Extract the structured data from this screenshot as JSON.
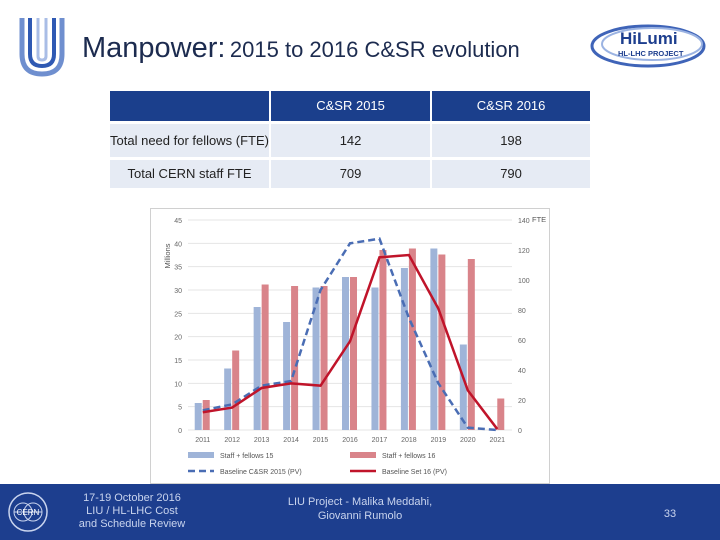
{
  "header": {
    "title_main": "Manpower:",
    "title_sub": "2015 to 2016 C&SR evolution",
    "logo_hilumi_text": "HiLumi",
    "logo_hilumi_subtext": "HL-LHC PROJECT"
  },
  "table": {
    "columns": [
      "",
      "C&SR 2015",
      "C&SR 2016"
    ],
    "rows": [
      {
        "label": "Total need for fellows (FTE)",
        "v2015": "142",
        "v2016": "198"
      },
      {
        "label": "Total CERN staff FTE",
        "v2015": "709",
        "v2016": "790"
      }
    ]
  },
  "chart_data": {
    "type": "bar",
    "categories": [
      "2011",
      "2012",
      "2013",
      "2014",
      "2015",
      "2016",
      "2017",
      "2018",
      "2019",
      "2020",
      "2021"
    ],
    "left_axis_label": "Millions",
    "left_ylim": [
      0,
      45
    ],
    "left_ticks": [
      "0",
      "5",
      "10",
      "15",
      "20",
      "25",
      "30",
      "35",
      "40",
      "45"
    ],
    "right_axis_label": "FTE",
    "right_ylim": [
      0,
      140
    ],
    "right_ticks": [
      "0",
      "20",
      "40",
      "60",
      "80",
      "100",
      "120",
      "140"
    ],
    "series": [
      {
        "name": "Staff + fellows 15",
        "kind": "bar",
        "axis": "right",
        "color": "#9fb4d8",
        "values": [
          18,
          41,
          82,
          72,
          95,
          102,
          95,
          108,
          121,
          57,
          0
        ]
      },
      {
        "name": "Staff + fellows 16",
        "kind": "bar",
        "axis": "right",
        "color": "#d9848a",
        "values": [
          20,
          53,
          97,
          96,
          96,
          102,
          120,
          121,
          117,
          114,
          21
        ]
      },
      {
        "name": "Baseline C&SR 2015 (PV)",
        "kind": "line",
        "axis": "left",
        "color": "#4a6db4",
        "dash": "7,4",
        "values": [
          4.2,
          5.5,
          9.5,
          10.5,
          30,
          40,
          41,
          24,
          10,
          0.5,
          0
        ]
      },
      {
        "name": "Baseline Set 16 (PV)",
        "kind": "line",
        "axis": "left",
        "color": "#c0142a",
        "values": [
          3.8,
          4.8,
          9,
          10,
          9.5,
          19,
          37,
          37.5,
          26,
          8.5,
          0.2
        ]
      }
    ],
    "legend": "bottom",
    "grid": true
  },
  "footer": {
    "cern_logo_text": "CERN",
    "date_line1": "17-19 October 2016",
    "date_line2": "LIU / HL-LHC Cost",
    "date_line3": "and Schedule Review",
    "project_line1": "LIU Project - Malika Meddahi,",
    "project_line2": "Giovanni Rumolo",
    "page_number": "33"
  },
  "colors": {
    "brand_blue": "#1d3e8e",
    "table_header": "#1b3f8c",
    "table_row": "#e6ebf4"
  }
}
